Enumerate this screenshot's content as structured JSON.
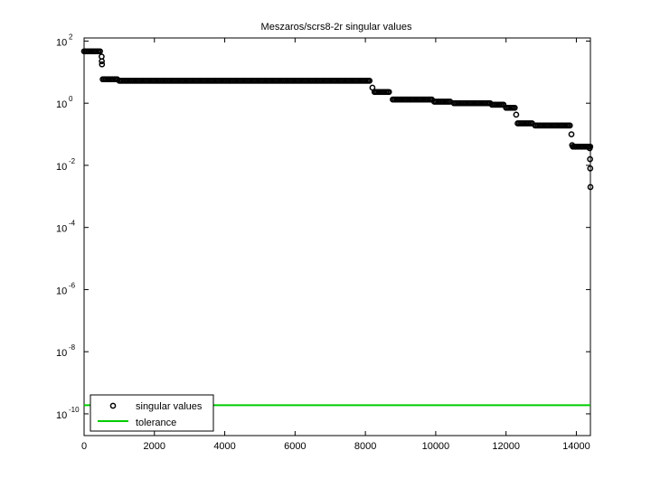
{
  "chart_data": {
    "type": "scatter",
    "title": "Meszaros/scrs8-2r singular values",
    "xlabel": "",
    "ylabel": "",
    "xlim": [
      0,
      14400
    ],
    "ylim_log10": [
      -10.7,
      2.1
    ],
    "yscale": "log",
    "grid": false,
    "legend_position": "bottom-left",
    "x_ticks": [
      0,
      2000,
      4000,
      6000,
      8000,
      10000,
      12000,
      14000
    ],
    "x_tick_labels": [
      "0",
      "2000",
      "4000",
      "6000",
      "8000",
      "10000",
      "12000",
      "14000"
    ],
    "y_tick_exponents": [
      2,
      0,
      -2,
      -4,
      -6,
      -8,
      -10
    ],
    "y_tick_base": "10",
    "y_tick_exponent_labels": [
      "2",
      "0",
      "-2",
      "-4",
      "-6",
      "-8",
      "-10"
    ],
    "series": [
      {
        "name": "singular values",
        "marker": "open-circle",
        "color": "#000000",
        "segments": [
          {
            "x0": 0,
            "x1": 460,
            "log10y": 1.67
          },
          {
            "x0": 530,
            "x1": 950,
            "log10y": 0.77
          },
          {
            "x0": 1000,
            "x1": 8150,
            "log10y": 0.72
          },
          {
            "x0": 8260,
            "x1": 8700,
            "log10y": 0.36
          },
          {
            "x0": 8780,
            "x1": 9900,
            "log10y": 0.12
          },
          {
            "x0": 9960,
            "x1": 10450,
            "log10y": 0.05
          },
          {
            "x0": 10520,
            "x1": 11550,
            "log10y": 0.0
          },
          {
            "x0": 11600,
            "x1": 11950,
            "log10y": -0.05
          },
          {
            "x0": 12000,
            "x1": 12250,
            "log10y": -0.15
          },
          {
            "x0": 12330,
            "x1": 12780,
            "log10y": -0.65
          },
          {
            "x0": 12830,
            "x1": 13850,
            "log10y": -0.72
          },
          {
            "x0": 13900,
            "x1": 14400,
            "log10y": -1.4
          }
        ],
        "points": [
          {
            "x": 500,
            "log10y": 1.5
          },
          {
            "x": 505,
            "log10y": 1.35
          },
          {
            "x": 510,
            "log10y": 1.25
          },
          {
            "x": 8200,
            "log10y": 0.5
          },
          {
            "x": 12290,
            "log10y": -0.37
          },
          {
            "x": 13860,
            "log10y": -1.0
          },
          {
            "x": 13880,
            "log10y": -1.35
          },
          {
            "x": 14380,
            "log10y": -1.45
          },
          {
            "x": 14390,
            "log10y": -1.8
          },
          {
            "x": 14395,
            "log10y": -2.1
          },
          {
            "x": 14400,
            "log10y": -2.7
          }
        ]
      },
      {
        "name": "tolerance",
        "type": "line",
        "color": "#00cc00",
        "log10y": -9.72,
        "x": [
          0,
          14400
        ]
      }
    ]
  }
}
